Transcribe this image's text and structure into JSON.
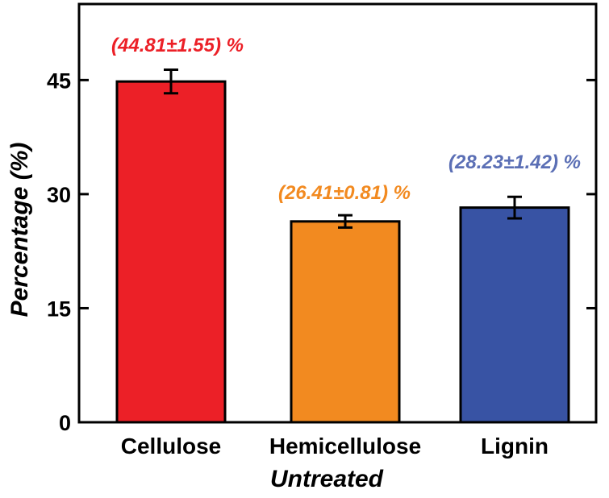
{
  "chart_data": {
    "type": "bar",
    "title": "",
    "xlabel": "Untreated",
    "ylabel": "Percentage  (%)",
    "ylim": [
      0,
      55
    ],
    "yticks": [
      0,
      15,
      30,
      45
    ],
    "grid": false,
    "categories": [
      "Cellulose",
      "Hemicellulose",
      "Lignin"
    ],
    "values": [
      44.81,
      26.41,
      28.23
    ],
    "errors": [
      1.55,
      0.81,
      1.42
    ],
    "labels": [
      "(44.81±1.55) %",
      "(26.41±0.81) %",
      "(28.23±1.42) %"
    ],
    "colors": [
      "#ec2027",
      "#f28a20",
      "#3853a4"
    ],
    "label_colors": [
      "#ec2027",
      "#f28a20",
      "#5b6fb5"
    ]
  }
}
